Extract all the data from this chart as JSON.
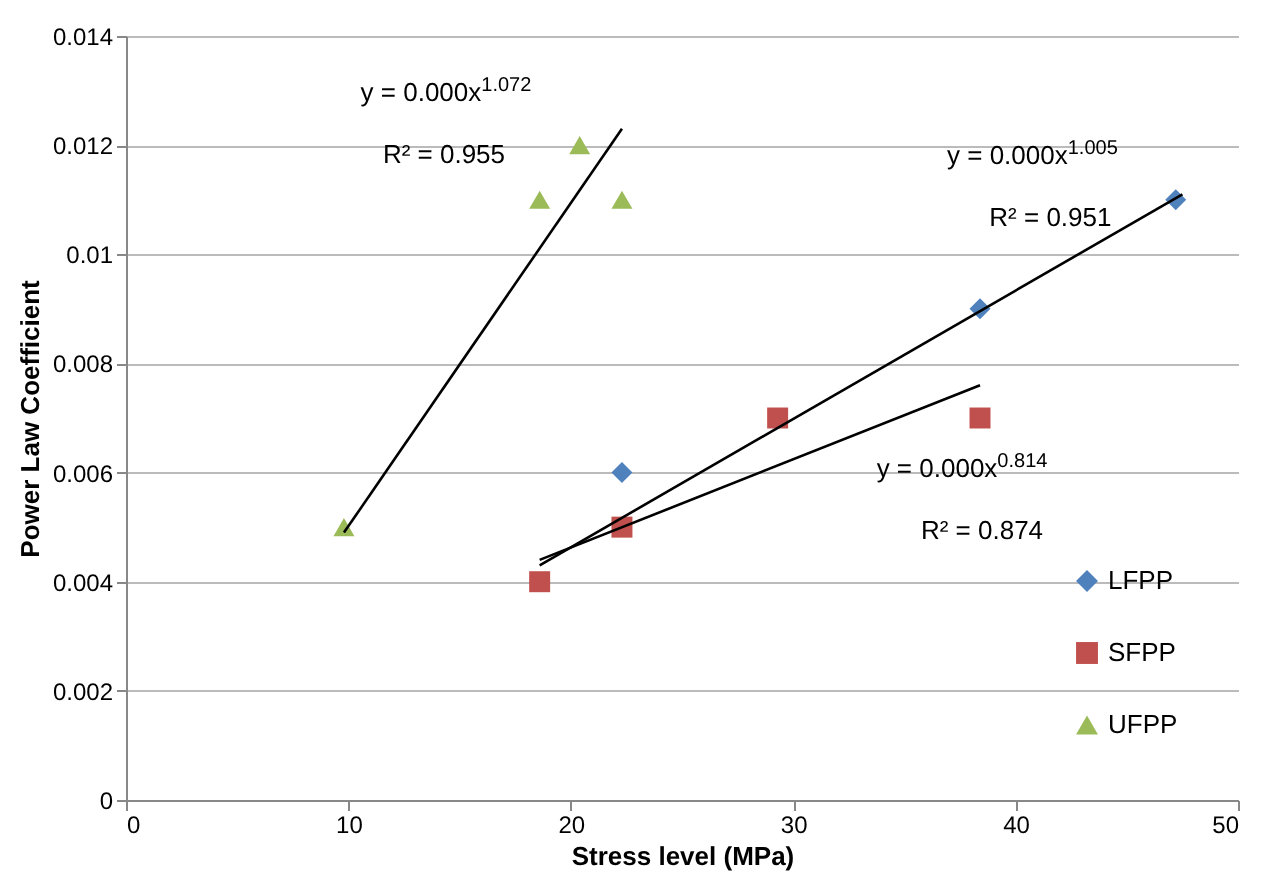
{
  "chart_data": {
    "type": "scatter",
    "xlabel": "Stress level (MPa)",
    "ylabel": "Power Law Coefficient",
    "xlim": [
      0,
      50
    ],
    "xticks": [
      0,
      10,
      20,
      30,
      40,
      50
    ],
    "ylim": [
      0,
      0.014
    ],
    "yticks": [
      0,
      0.002,
      0.004,
      0.006,
      0.008,
      0.01,
      0.012,
      0.014
    ],
    "grid": "y",
    "legend": "bottom right",
    "series": [
      {
        "name": "LFPP",
        "color": "#4f81bd",
        "marker": "diamond",
        "x": [
          22.3,
          38.4,
          47.2
        ],
        "values": [
          0.006,
          0.009,
          0.011
        ]
      },
      {
        "name": "SFPP",
        "color": "#c0504d",
        "marker": "square",
        "x": [
          18.6,
          22.3,
          29.3,
          38.4
        ],
        "values": [
          0.004,
          0.005,
          0.007,
          0.007
        ]
      },
      {
        "name": "UFPP",
        "color": "#9bbb59",
        "marker": "triangle",
        "x": [
          9.8,
          18.6,
          20.4,
          22.3
        ],
        "values": [
          0.005,
          0.011,
          0.012,
          0.011
        ]
      },
      {
        "type": "line",
        "color": "#000000",
        "line_style": "solid",
        "marker": "none",
        "x": [
          9.8,
          22.3
        ],
        "values": [
          0.0049,
          0.0123
        ]
      },
      {
        "type": "line",
        "color": "#000000",
        "line_style": "solid",
        "marker": "none",
        "x": [
          18.6,
          47.5
        ],
        "values": [
          0.0043,
          0.0111
        ]
      },
      {
        "type": "line",
        "color": "#000000",
        "line_style": "solid",
        "marker": "none",
        "x": [
          18.6,
          38.4
        ],
        "values": [
          0.0044,
          0.0076
        ]
      }
    ],
    "annotations": [
      "y = 0.000x$^{1.072}$",
      "R² = 0.955",
      "y = 0.000x$^{1.005}$",
      "R² = 0.951",
      "y = 0.000x$^{0.814}$",
      "R² = 0.874"
    ]
  }
}
